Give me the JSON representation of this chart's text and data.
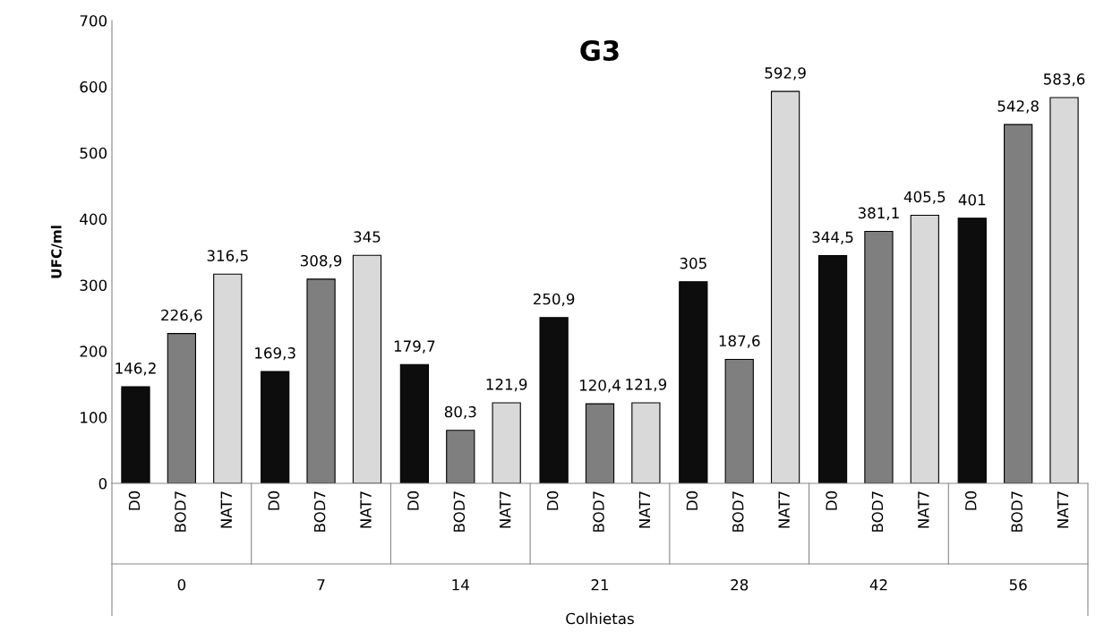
{
  "chart_data": {
    "type": "bar",
    "title": "G3",
    "xlabel": "Colhietas",
    "ylabel": "UFC/ml",
    "categories": [
      "0",
      "7",
      "14",
      "21",
      "28",
      "42",
      "56"
    ],
    "series": [
      {
        "name": "D0",
        "color": "#0d0d0d",
        "values": [
          146.2,
          169.3,
          179.7,
          250.9,
          305,
          344.5,
          401
        ],
        "value_labels": [
          "146,2",
          "169,3",
          "179,7",
          "250,9",
          "305",
          "344,5",
          "401"
        ]
      },
      {
        "name": "BOD7",
        "color": "#7f7f7f",
        "values": [
          226.6,
          308.9,
          80.3,
          120.4,
          187.6,
          381.1,
          542.8
        ],
        "value_labels": [
          "226,6",
          "308,9",
          "80,3",
          "120,4",
          "187,6",
          "381,1",
          "542,8"
        ]
      },
      {
        "name": "NAT7",
        "color": "#d9d9d9",
        "values": [
          316.5,
          345,
          121.9,
          121.9,
          592.9,
          405.5,
          583.6
        ],
        "value_labels": [
          "316,5",
          "345",
          "121,9",
          "121,9",
          "592,9",
          "405,5",
          "583,6"
        ]
      }
    ],
    "ylim": [
      0,
      700
    ],
    "yticks": [
      0,
      100,
      200,
      300,
      400,
      500,
      600,
      700
    ],
    "grid": false,
    "legend": false
  }
}
